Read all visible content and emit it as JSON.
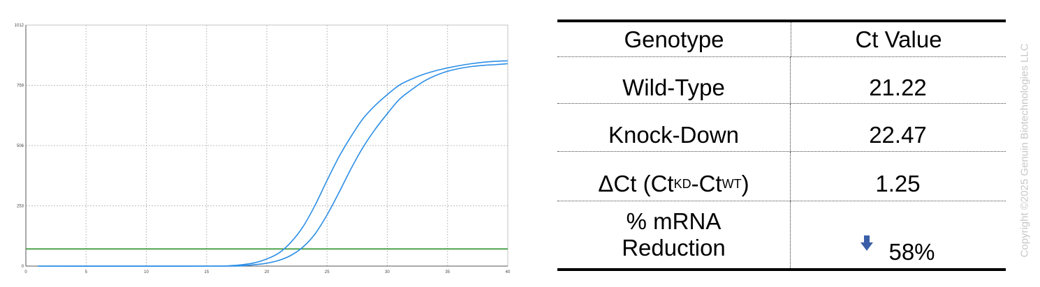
{
  "chart_data": {
    "type": "line",
    "xlabel": "",
    "ylabel": "",
    "xlim": [
      0,
      40
    ],
    "ylim": [
      0,
      1012
    ],
    "x_ticks": [
      0,
      5,
      10,
      15,
      20,
      25,
      30,
      35,
      40
    ],
    "y_ticks": [
      0,
      253,
      506,
      759,
      1012
    ],
    "grid": true,
    "threshold": {
      "value": 72,
      "color": "#1a8a1a"
    },
    "series": [
      {
        "color": "#2b8ee6",
        "x": [
          1,
          15,
          17,
          18,
          19,
          20,
          21,
          22,
          23,
          24,
          25,
          26,
          27,
          28,
          29,
          30,
          31,
          32,
          33,
          34,
          35,
          36,
          37,
          38,
          39,
          40
        ],
        "y": [
          0,
          0,
          2,
          6,
          14,
          30,
          55,
          100,
          165,
          255,
          360,
          460,
          545,
          620,
          675,
          720,
          760,
          785,
          805,
          820,
          832,
          842,
          850,
          856,
          860,
          862
        ]
      },
      {
        "color": "#2b8ee6",
        "x": [
          1,
          16,
          18,
          19,
          20,
          21,
          22,
          23,
          24,
          25,
          26,
          27,
          28,
          29,
          30,
          31,
          32,
          33,
          34,
          35,
          36,
          37,
          38,
          39,
          40
        ],
        "y": [
          0,
          0,
          2,
          6,
          12,
          24,
          45,
          80,
          135,
          215,
          310,
          410,
          500,
          575,
          640,
          700,
          740,
          775,
          800,
          818,
          830,
          838,
          843,
          846,
          850
        ]
      }
    ]
  },
  "table": {
    "headers": [
      "Genotype",
      "Ct Value"
    ],
    "rows": [
      {
        "label": "Wild-Type",
        "value": "21.22"
      },
      {
        "label": "Knock-Down",
        "value": "22.47"
      },
      {
        "label_parts": [
          "ΔCt (Ct",
          "KD",
          "-Ct",
          "WT",
          ")"
        ],
        "value": "1.25"
      },
      {
        "label": "% mRNA Reduction",
        "value": "58%",
        "icon": "down-arrow-icon"
      }
    ]
  },
  "copyright": "Copyright ©2025 Genuin Biotechnologies LLC"
}
